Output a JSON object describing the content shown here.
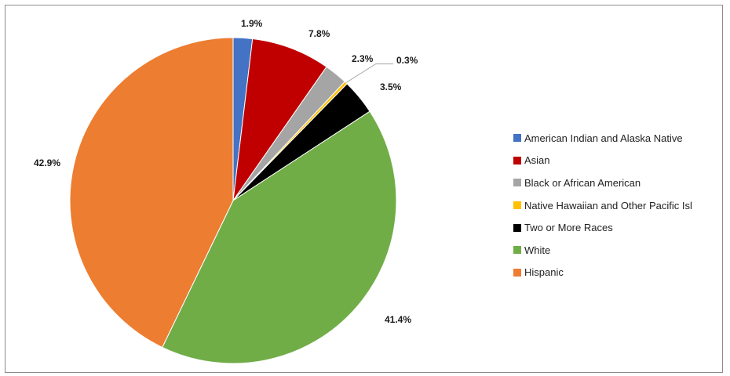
{
  "chart_data": {
    "type": "pie",
    "title": "",
    "categories": [
      "American Indian and Alaska Native",
      "Asian",
      "Black or African American",
      "Native Hawaiian and Other Pacific Isl",
      "Two or More Races",
      "White",
      "Hispanic"
    ],
    "values": [
      1.9,
      7.8,
      2.3,
      0.3,
      3.5,
      41.4,
      42.9
    ],
    "labels": [
      "1.9%",
      "7.8%",
      "2.3%",
      "0.3%",
      "3.5%",
      "41.4%",
      "42.9%"
    ],
    "colors": [
      "#4472c4",
      "#c00000",
      "#a5a5a5",
      "#ffc000",
      "#000000",
      "#70ad47",
      "#ed7d31"
    ],
    "legend_position": "right"
  }
}
